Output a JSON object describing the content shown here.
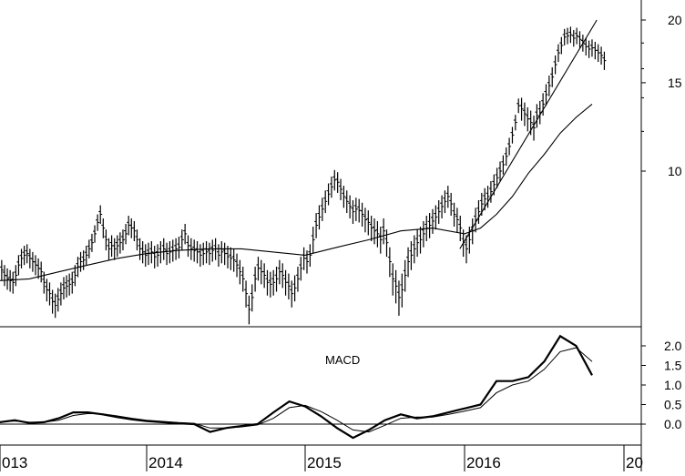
{
  "chart_data": [
    {
      "type": "line",
      "panel": "price",
      "scale": "log",
      "y_ticks": [
        10,
        15,
        20
      ],
      "ylim": [
        4.2,
        22
      ],
      "x_ticks": [
        "013",
        "2014",
        "2015",
        "2016",
        "20"
      ],
      "price_bars": {
        "t0": 2012.8,
        "step": 0.01923,
        "closes": [
          6.8,
          6.6,
          6.35,
          6.3,
          6.2,
          6.1,
          6.0,
          5.9,
          6.0,
          6.2,
          6.3,
          6.35,
          6.2,
          6.1,
          6.05,
          6.0,
          6.2,
          6.5,
          6.7,
          6.8,
          6.85,
          6.7,
          6.6,
          6.5,
          6.4,
          6.3,
          6.0,
          5.8,
          5.7,
          5.5,
          5.4,
          5.55,
          5.7,
          5.85,
          5.9,
          5.95,
          6.0,
          6.2,
          6.45,
          6.6,
          6.65,
          6.8,
          7.0,
          7.2,
          7.5,
          7.9,
          8.2,
          7.7,
          7.3,
          7.0,
          7.1,
          7.0,
          7.1,
          7.2,
          7.3,
          7.5,
          7.8,
          7.7,
          7.6,
          7.3,
          7.0,
          6.9,
          6.8,
          6.85,
          6.9,
          6.75,
          6.8,
          6.9,
          7.0,
          6.85,
          6.9,
          6.95,
          7.0,
          7.05,
          7.3,
          7.5,
          7.1,
          7.0,
          6.95,
          6.9,
          6.8,
          6.85,
          6.9,
          6.85,
          6.95,
          7.0,
          6.8,
          6.9,
          6.85,
          6.75,
          6.7,
          6.65,
          6.5,
          6.3,
          6.1,
          5.7,
          5.3,
          5.6,
          6.1,
          6.4,
          6.3,
          6.2,
          6.0,
          5.95,
          6.0,
          6.1,
          6.3,
          6.2,
          6.0,
          5.9,
          5.7,
          5.85,
          6.1,
          6.4,
          6.7,
          6.6,
          6.8,
          7.3,
          7.8,
          8.1,
          8.4,
          8.7,
          9.0,
          9.3,
          9.6,
          9.5,
          9.2,
          8.9,
          8.7,
          8.5,
          8.3,
          8.4,
          8.35,
          8.2,
          8.0,
          7.9,
          7.7,
          7.6,
          7.5,
          7.3,
          7.6,
          7.2,
          6.6,
          6.1,
          5.9,
          5.6,
          5.8,
          6.2,
          6.6,
          6.8,
          7.0,
          7.2,
          7.3,
          7.5,
          7.7,
          7.8,
          7.95,
          8.1,
          8.3,
          8.5,
          8.7,
          8.9,
          8.6,
          8.2,
          8.0,
          7.7,
          7.2,
          7.0,
          7.3,
          7.6,
          8.0,
          8.3,
          8.6,
          8.8,
          8.9,
          9.1,
          9.4,
          9.7,
          10.0,
          10.3,
          10.7,
          11.2,
          11.8,
          12.5,
          13.5,
          13.3,
          13.0,
          12.7,
          12.5,
          12.2,
          12.9,
          13.1,
          13.6,
          14.2,
          14.8,
          15.4,
          16.3,
          17.2,
          17.8,
          18.5,
          18.6,
          18.7,
          18.4,
          18.6,
          18.3,
          18.0,
          17.7,
          17.5,
          17.6,
          17.4,
          17.2,
          17.0,
          16.6,
          16.3
        ],
        "spreads": [
          0.3,
          0.3,
          0.3,
          0.3,
          0.3,
          0.3,
          0.3,
          0.3,
          0.3,
          0.3,
          0.3,
          0.3,
          0.3,
          0.3,
          0.3,
          0.3,
          0.3,
          0.3,
          0.3,
          0.3,
          0.3,
          0.3,
          0.3,
          0.3,
          0.3,
          0.3,
          0.3,
          0.3,
          0.3,
          0.3,
          0.3,
          0.3,
          0.3,
          0.3,
          0.3,
          0.3,
          0.3,
          0.3,
          0.3,
          0.3,
          0.3,
          0.3,
          0.3,
          0.3,
          0.3,
          0.3,
          0.35,
          0.35,
          0.35,
          0.35,
          0.35,
          0.35,
          0.35,
          0.35,
          0.35,
          0.35,
          0.35,
          0.35,
          0.35,
          0.35,
          0.35,
          0.35,
          0.35,
          0.35,
          0.35,
          0.35,
          0.35,
          0.35,
          0.35,
          0.35,
          0.35,
          0.35,
          0.35,
          0.35,
          0.35,
          0.35,
          0.35,
          0.35,
          0.35,
          0.35,
          0.35,
          0.35,
          0.35,
          0.35,
          0.35,
          0.35,
          0.35,
          0.35,
          0.35,
          0.35,
          0.35,
          0.35,
          0.35,
          0.35,
          0.35,
          0.35,
          0.35,
          0.35,
          0.35,
          0.35,
          0.35,
          0.35,
          0.35,
          0.35,
          0.35,
          0.35,
          0.35,
          0.35,
          0.35,
          0.35,
          0.35,
          0.35,
          0.35,
          0.35,
          0.35,
          0.35,
          0.35,
          0.45,
          0.45,
          0.45,
          0.45,
          0.45,
          0.45,
          0.45,
          0.45,
          0.45,
          0.45,
          0.45,
          0.45,
          0.45,
          0.45,
          0.45,
          0.45,
          0.45,
          0.45,
          0.45,
          0.45,
          0.45,
          0.45,
          0.45,
          0.45,
          0.45,
          0.45,
          0.45,
          0.45,
          0.45,
          0.45,
          0.45,
          0.45,
          0.45,
          0.45,
          0.45,
          0.45,
          0.45,
          0.45,
          0.45,
          0.45,
          0.45,
          0.45,
          0.45,
          0.45,
          0.45,
          0.45,
          0.45,
          0.45,
          0.45,
          0.45,
          0.45,
          0.45,
          0.45,
          0.45,
          0.45,
          0.45,
          0.45,
          0.45,
          0.45,
          0.45,
          0.45,
          0.45,
          0.45,
          0.45,
          0.45,
          0.45,
          0.45,
          0.45,
          0.7,
          0.7,
          0.7,
          0.7,
          0.7,
          0.7,
          0.7,
          0.7,
          0.7,
          0.7,
          0.7,
          0.7,
          0.7,
          0.7,
          0.7,
          0.7,
          0.7,
          0.7,
          0.7,
          0.7,
          0.7,
          0.7,
          0.7,
          0.7,
          0.7,
          0.7,
          0.7,
          0.7,
          0.7,
          0.7,
          0.7
        ]
      },
      "series": [
        {
          "x": [
            2012.8,
            2013.0,
            2013.2,
            2013.4,
            2013.6,
            2013.8,
            2014.0,
            2014.2,
            2014.4,
            2014.6,
            2014.8,
            2015.0,
            2015.2,
            2015.4,
            2015.6,
            2015.8,
            2016.0,
            2016.1,
            2016.2,
            2016.3,
            2016.4,
            2016.5,
            2016.6,
            2016.7,
            2016.8
          ],
          "y": [
            6.1,
            6.05,
            6.1,
            6.3,
            6.5,
            6.7,
            6.85,
            6.95,
            7.0,
            7.0,
            6.9,
            6.8,
            7.05,
            7.3,
            7.6,
            7.7,
            7.5,
            7.7,
            8.2,
            8.9,
            9.9,
            10.8,
            11.9,
            12.8,
            13.6
          ]
        },
        {
          "x": [
            2015.97,
            2016.83
          ],
          "y": [
            7.0,
            20.0
          ]
        }
      ]
    },
    {
      "type": "line",
      "panel": "indicator",
      "annotations": [
        "MACD"
      ],
      "y_ticks": [
        "2.0",
        "1.5",
        "1.0",
        "0.5",
        "0.0"
      ],
      "ylim": [
        -0.4,
        2.3
      ],
      "series": [
        {
          "x": [
            2012.8,
            2012.9,
            2013.0,
            2013.1,
            2013.2,
            2013.3,
            2013.4,
            2013.5,
            2013.6,
            2013.7,
            2013.8,
            2013.9,
            2014.0,
            2014.1,
            2014.2,
            2014.3,
            2014.4,
            2014.5,
            2014.6,
            2014.7,
            2014.8,
            2014.9,
            2015.0,
            2015.1,
            2015.2,
            2015.3,
            2015.4,
            2015.5,
            2015.6,
            2015.7,
            2015.8,
            2015.9,
            2016.0,
            2016.1,
            2016.2,
            2016.3,
            2016.4,
            2016.5,
            2016.6,
            2016.7,
            2016.8
          ],
          "y": [
            0.1,
            0.05,
            0.05,
            0.1,
            0.03,
            0.05,
            0.15,
            0.3,
            0.3,
            0.25,
            0.18,
            0.12,
            0.08,
            0.05,
            0.02,
            0.0,
            -0.2,
            -0.1,
            -0.05,
            0.0,
            0.3,
            0.58,
            0.45,
            0.2,
            -0.1,
            -0.35,
            -0.15,
            0.1,
            0.25,
            0.15,
            0.2,
            0.3,
            0.4,
            0.5,
            1.1,
            1.1,
            1.2,
            1.6,
            2.25,
            2.0,
            1.25
          ]
        },
        {
          "x": [
            2012.8,
            2012.9,
            2013.0,
            2013.1,
            2013.2,
            2013.3,
            2013.4,
            2013.5,
            2013.6,
            2013.7,
            2013.8,
            2013.9,
            2014.0,
            2014.1,
            2014.2,
            2014.3,
            2014.4,
            2014.5,
            2014.6,
            2014.7,
            2014.8,
            2014.9,
            2015.0,
            2015.1,
            2015.2,
            2015.3,
            2015.4,
            2015.5,
            2015.6,
            2015.7,
            2015.8,
            2015.9,
            2016.0,
            2016.1,
            2016.2,
            2016.3,
            2016.4,
            2016.5,
            2016.6,
            2016.7,
            2016.8
          ],
          "y": [
            0.08,
            0.06,
            0.05,
            0.08,
            0.05,
            0.05,
            0.1,
            0.22,
            0.27,
            0.26,
            0.21,
            0.15,
            0.1,
            0.07,
            0.04,
            0.02,
            -0.1,
            -0.1,
            -0.07,
            -0.02,
            0.15,
            0.42,
            0.48,
            0.32,
            0.1,
            -0.15,
            -0.2,
            -0.03,
            0.15,
            0.18,
            0.18,
            0.25,
            0.33,
            0.42,
            0.8,
            1.0,
            1.1,
            1.4,
            1.85,
            1.95,
            1.6
          ]
        }
      ]
    }
  ]
}
